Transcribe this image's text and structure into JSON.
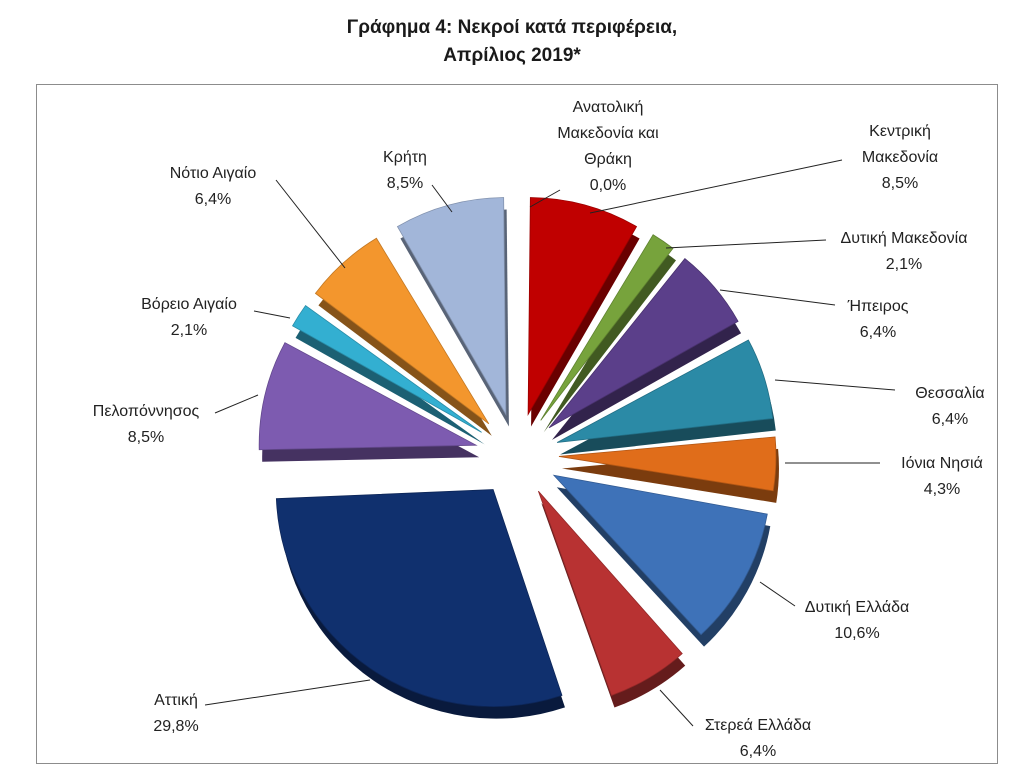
{
  "title": {
    "line1": "Γράφημα 4: Νεκροί κατά περιφέρεια,",
    "line2": "Απρίλιος 2019*"
  },
  "chart_data": {
    "type": "pie",
    "title": "Γράφημα 4: Νεκροί κατά περιφέρεια, Απρίλιος 2019*",
    "unit": "%",
    "slices": [
      {
        "label": "Ανατολική Μακεδονία και Θράκη",
        "value": 0.0,
        "value_label": "0,0%",
        "color": "#2e4f8f"
      },
      {
        "label": "Κεντρική Μακεδονία",
        "value": 8.5,
        "value_label": "8,5%",
        "color": "#c00000"
      },
      {
        "label": "Δυτική Μακεδονία",
        "value": 2.1,
        "value_label": "2,1%",
        "color": "#77a33c"
      },
      {
        "label": "Ήπειρος",
        "value": 6.4,
        "value_label": "6,4%",
        "color": "#5b3f8a"
      },
      {
        "label": "Θεσσαλία",
        "value": 6.4,
        "value_label": "6,4%",
        "color": "#2b8aa6"
      },
      {
        "label": "Ιόνια Νησιά",
        "value": 4.3,
        "value_label": "4,3%",
        "color": "#e06d1a"
      },
      {
        "label": "Δυτική Ελλάδα",
        "value": 10.6,
        "value_label": "10,6%",
        "color": "#3e72b8"
      },
      {
        "label": "Στερεά Ελλάδα",
        "value": 6.4,
        "value_label": "6,4%",
        "color": "#b83232"
      },
      {
        "label": "Αττική",
        "value": 29.8,
        "value_label": "29,8%",
        "color": "#10306e"
      },
      {
        "label": "Πελοπόννησος",
        "value": 8.5,
        "value_label": "8,5%",
        "color": "#7d5bb0"
      },
      {
        "label": "Βόρειο Αιγαίο",
        "value": 2.1,
        "value_label": "2,1%",
        "color": "#33afd1"
      },
      {
        "label": "Νότιο Αιγαίο",
        "value": 6.4,
        "value_label": "6,4%",
        "color": "#f3962d"
      },
      {
        "label": "Κρήτη",
        "value": 8.5,
        "value_label": "8,5%",
        "color": "#a2b6d9"
      }
    ]
  }
}
